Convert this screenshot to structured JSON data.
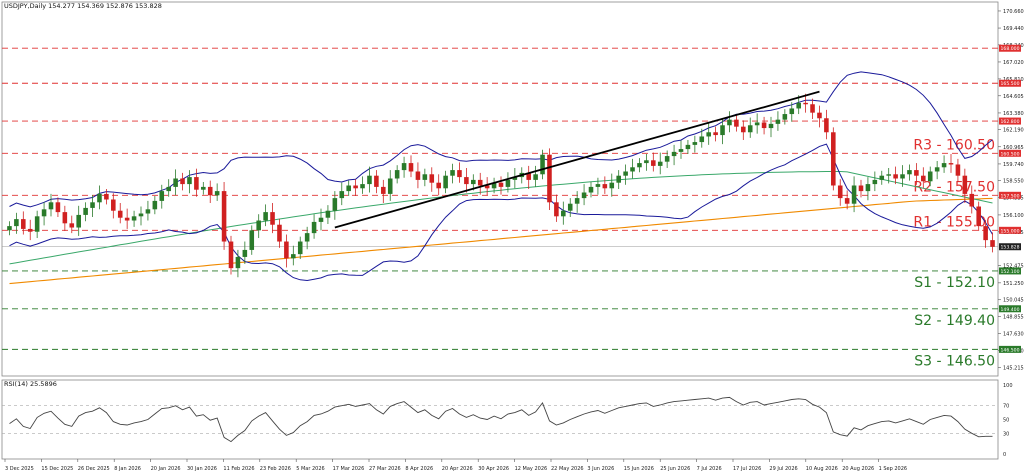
{
  "header": {
    "symbol_line": "USDJPY,Daily  154.277 154.369 152.876 153.828",
    "rsi_line": "RSI(14) 25.5896"
  },
  "colors": {
    "resistance": "#e03030",
    "support": "#2a7a2a",
    "candle_up": "#2a7a2a",
    "candle_down": "#d02020",
    "bollinger": "#1a1a9a",
    "ma_fast": "#3aa86a",
    "ma_slow": "#f08a00",
    "trendline": "#000000",
    "rsi_line": "#444444",
    "price_tag": "#222222"
  },
  "chart_data": [
    {
      "type": "candlestick",
      "title": "USDJPY,Daily",
      "ylim": [
        144.6,
        171.3
      ],
      "x_tick_labels": [
        "3 Dec 2025",
        "15 Dec 2025",
        "26 Dec 2025",
        "8 Jan 2026",
        "20 Jan 2026",
        "30 Jan 2026",
        "11 Feb 2026",
        "23 Feb 2026",
        "5 Mar 2026",
        "17 Mar 2026",
        "27 Mar 2026",
        "8 Apr 2026",
        "20 Apr 2026",
        "30 Apr 2026",
        "12 May 2026",
        "22 May 2026",
        "3 Jun 2026",
        "15 Jun 2026",
        "25 Jun 2026",
        "7 Jul 2026",
        "17 Jul 2026",
        "29 Jul 2026",
        "10 Aug 2026",
        "20 Aug 2026",
        "1 Sep 2026"
      ],
      "y_tick_labels": [
        {
          "value": 170.66,
          "label": "170.660"
        },
        {
          "value": 169.44,
          "label": "169.440"
        },
        {
          "value": 168.24,
          "label": "168.240"
        },
        {
          "value": 167.02,
          "label": "167.020"
        },
        {
          "value": 165.81,
          "label": "165.810"
        },
        {
          "value": 164.605,
          "label": "164.605"
        },
        {
          "value": 163.38,
          "label": "163.380"
        },
        {
          "value": 162.19,
          "label": "162.190"
        },
        {
          "value": 160.965,
          "label": "160.965"
        },
        {
          "value": 159.74,
          "label": "159.740"
        },
        {
          "value": 158.55,
          "label": "158.550"
        },
        {
          "value": 157.335,
          "label": "157.335"
        },
        {
          "value": 156.1,
          "label": "156.100"
        },
        {
          "value": 154.895,
          "label": "154.895"
        },
        {
          "value": 152.475,
          "label": "152.475"
        },
        {
          "value": 151.25,
          "label": "151.250"
        },
        {
          "value": 150.045,
          "label": "150.045"
        },
        {
          "value": 148.855,
          "label": "148.855"
        },
        {
          "value": 147.63,
          "label": "147.630"
        },
        {
          "value": 146.42,
          "label": "146.420"
        },
        {
          "value": 145.215,
          "label": "145.215"
        }
      ],
      "levels": [
        {
          "value": 168.0,
          "tag": "168.000",
          "kind": "resistance",
          "label": ""
        },
        {
          "value": 165.5,
          "tag": "165.500",
          "kind": "resistance",
          "label": ""
        },
        {
          "value": 162.8,
          "tag": "162.800",
          "kind": "resistance",
          "label": ""
        },
        {
          "value": 160.5,
          "tag": "160.500",
          "kind": "resistance",
          "label": "R3 - 160.50"
        },
        {
          "value": 157.5,
          "tag": "157.500",
          "kind": "resistance",
          "label": "R2 - 157.50"
        },
        {
          "value": 155.0,
          "tag": "155.000",
          "kind": "resistance",
          "label": "R1 - 155.00"
        },
        {
          "value": 152.1,
          "tag": "152.100",
          "kind": "support",
          "label": "S1 - 152.10"
        },
        {
          "value": 149.4,
          "tag": "149.400",
          "kind": "support",
          "label": "S2 - 149.40"
        },
        {
          "value": 146.5,
          "tag": "146.500",
          "kind": "support",
          "label": "S3 - 146.50"
        }
      ],
      "current_price": {
        "value": 153.828,
        "label": "153.828"
      },
      "series": [
        {
          "kind": "close",
          "values": [
            155.3,
            155.8,
            155.1,
            154.9,
            156.0,
            156.5,
            157.0,
            156.3,
            155.5,
            155.2,
            156.1,
            156.6,
            157.0,
            157.6,
            157.2,
            156.4,
            155.9,
            155.7,
            156.0,
            156.2,
            156.5,
            157.1,
            157.8,
            158.1,
            158.7,
            158.3,
            158.8,
            157.9,
            158.1,
            157.5,
            157.8,
            154.2,
            152.3,
            153.1,
            153.6,
            155.0,
            155.7,
            156.3,
            155.4,
            154.2,
            153.0,
            153.3,
            154.2,
            154.8,
            155.6,
            155.9,
            156.4,
            157.3,
            157.8,
            158.2,
            158.0,
            158.3,
            158.9,
            158.1,
            157.6,
            158.7,
            159.3,
            159.8,
            159.2,
            158.6,
            159.0,
            158.4,
            158.0,
            158.9,
            159.3,
            158.8,
            158.3,
            158.6,
            158.2,
            158.0,
            158.4,
            158.1,
            158.6,
            158.8,
            159.1,
            158.6,
            159.0,
            160.4,
            157.0,
            156.0,
            156.4,
            156.9,
            157.3,
            157.7,
            158.1,
            158.3,
            158.0,
            158.4,
            158.9,
            159.2,
            159.5,
            159.8,
            160.0,
            159.6,
            159.9,
            160.3,
            160.6,
            160.8,
            161.1,
            161.3,
            161.7,
            162.0,
            161.8,
            162.5,
            162.9,
            162.4,
            162.0,
            162.5,
            162.7,
            162.3,
            162.6,
            162.9,
            163.3,
            163.7,
            164.1,
            164.0,
            163.4,
            163.0,
            162.0,
            158.2,
            157.3,
            156.9,
            158.2,
            157.8,
            158.3,
            158.6,
            158.9,
            159.0,
            158.7,
            159.0,
            159.3,
            158.9,
            158.5,
            159.2,
            159.5,
            159.8,
            159.7,
            158.9,
            157.6,
            156.7,
            155.3,
            154.3,
            153.828
          ]
        },
        {
          "kind": "rsi",
          "values": [
            44,
            51,
            40,
            37,
            53,
            59,
            62,
            52,
            43,
            40,
            55,
            60,
            62,
            67,
            60,
            47,
            43,
            42,
            45,
            47,
            50,
            58,
            66,
            67,
            70,
            64,
            68,
            55,
            57,
            49,
            52,
            24,
            18,
            27,
            34,
            48,
            55,
            60,
            48,
            36,
            27,
            31,
            41,
            47,
            56,
            58,
            62,
            68,
            70,
            72,
            69,
            71,
            73,
            64,
            58,
            69,
            73,
            76,
            68,
            60,
            64,
            56,
            51,
            62,
            66,
            58,
            53,
            57,
            52,
            50,
            55,
            51,
            58,
            60,
            64,
            56,
            61,
            74,
            48,
            42,
            45,
            50,
            54,
            58,
            61,
            63,
            59,
            63,
            67,
            69,
            71,
            73,
            74,
            69,
            71,
            74,
            76,
            77,
            78,
            79,
            80,
            81,
            78,
            81,
            82,
            76,
            71,
            75,
            76,
            71,
            73,
            75,
            77,
            79,
            80,
            79,
            72,
            68,
            60,
            32,
            28,
            26,
            38,
            35,
            41,
            44,
            47,
            48,
            45,
            48,
            51,
            47,
            43,
            50,
            53,
            56,
            55,
            47,
            36,
            30,
            25,
            25.6,
            25.5896
          ]
        }
      ]
    },
    {
      "type": "line",
      "title": "RSI(14) 25.5896",
      "ylim": [
        0,
        100
      ],
      "y_tick_labels": [
        {
          "value": 100,
          "label": "100"
        },
        {
          "value": 70,
          "label": "70"
        },
        {
          "value": 50,
          "label": "50"
        },
        {
          "value": 30,
          "label": "30"
        },
        {
          "value": 0,
          "label": "0"
        }
      ]
    }
  ]
}
